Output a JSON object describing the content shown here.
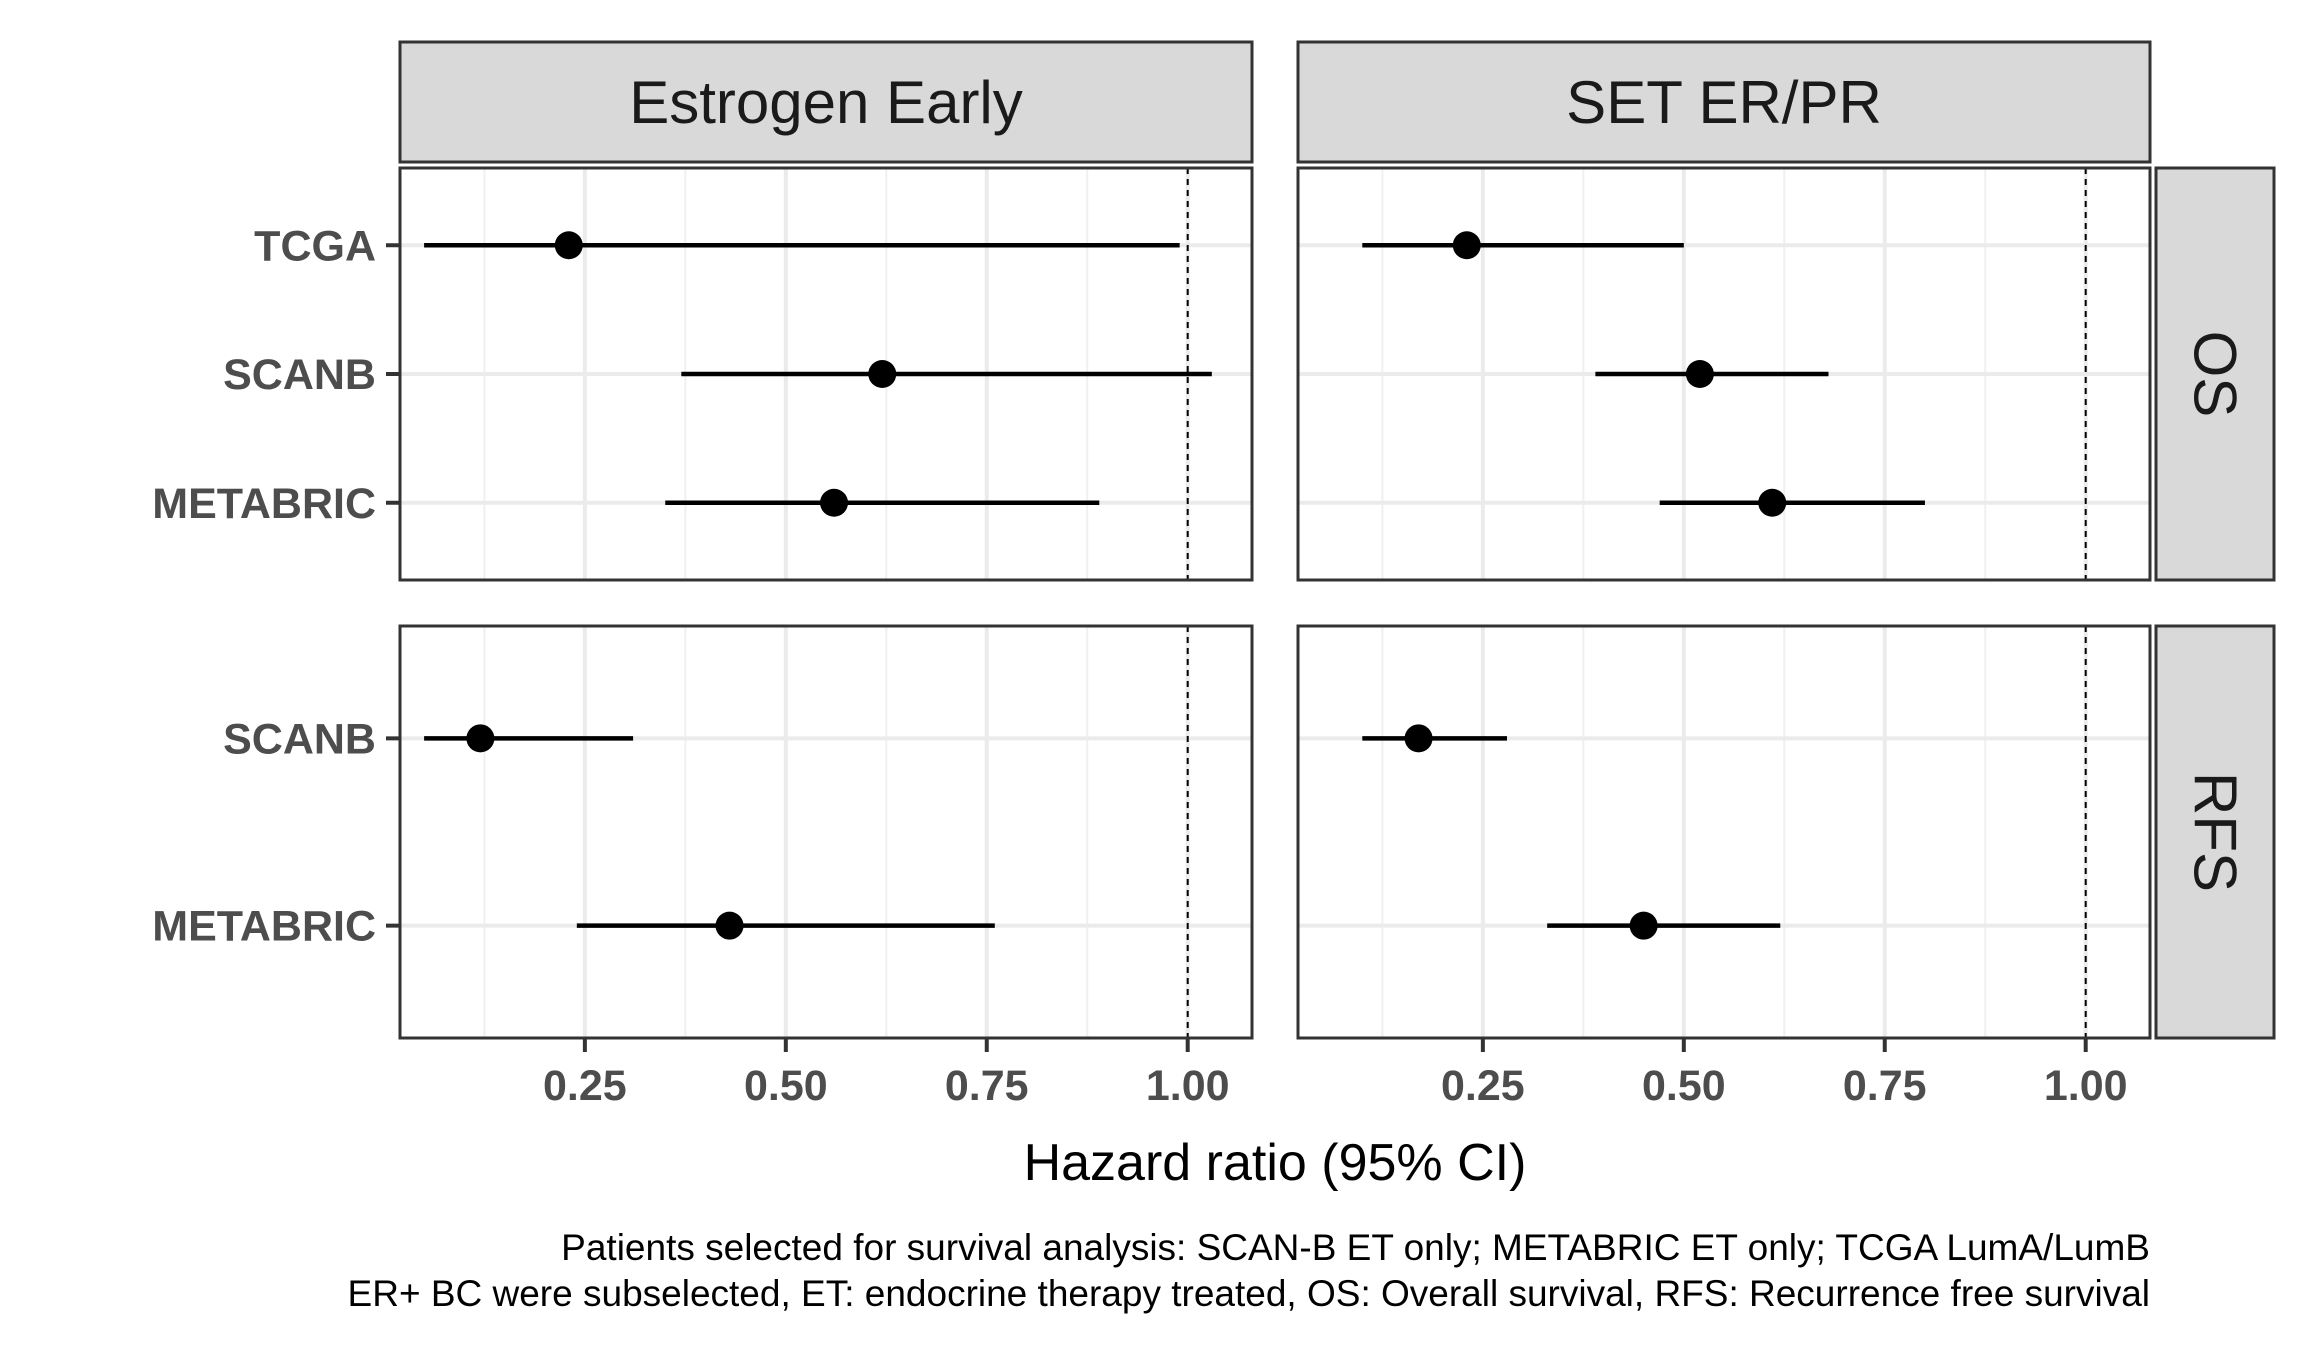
{
  "chart_data": {
    "type": "scatter",
    "subtype": "forest-plot",
    "xlabel": "Hazard ratio (95% CI)",
    "ylabel": "",
    "xlim": [
      0.02,
      1.08
    ],
    "x_ticks": [
      0.25,
      0.5,
      0.75,
      1.0
    ],
    "x_tick_labels": [
      "0.25",
      "0.50",
      "0.75",
      "1.00"
    ],
    "reference_line": 1.0,
    "grid": true,
    "panels_columns": [
      "Estrogen Early",
      "SET ER/PR"
    ],
    "panels_rows": [
      "OS",
      "RFS"
    ],
    "row_categories": {
      "OS": [
        "TCGA",
        "SCANB",
        "METABRIC"
      ],
      "RFS": [
        "SCANB",
        "METABRIC"
      ]
    },
    "series": [
      {
        "column": "Estrogen Early",
        "row": "OS",
        "points": [
          {
            "cohort": "TCGA",
            "hr": 0.23,
            "lower": 0.05,
            "upper": 0.99
          },
          {
            "cohort": "SCANB",
            "hr": 0.62,
            "lower": 0.37,
            "upper": 1.03
          },
          {
            "cohort": "METABRIC",
            "hr": 0.56,
            "lower": 0.35,
            "upper": 0.89
          }
        ]
      },
      {
        "column": "SET ER/PR",
        "row": "OS",
        "points": [
          {
            "cohort": "TCGA",
            "hr": 0.23,
            "lower": 0.1,
            "upper": 0.5
          },
          {
            "cohort": "SCANB",
            "hr": 0.52,
            "lower": 0.39,
            "upper": 0.68
          },
          {
            "cohort": "METABRIC",
            "hr": 0.61,
            "lower": 0.47,
            "upper": 0.8
          }
        ]
      },
      {
        "column": "Estrogen Early",
        "row": "RFS",
        "points": [
          {
            "cohort": "SCANB",
            "hr": 0.12,
            "lower": 0.05,
            "upper": 0.31
          },
          {
            "cohort": "METABRIC",
            "hr": 0.43,
            "lower": 0.24,
            "upper": 0.76
          }
        ]
      },
      {
        "column": "SET ER/PR",
        "row": "RFS",
        "points": [
          {
            "cohort": "SCANB",
            "hr": 0.17,
            "lower": 0.1,
            "upper": 0.28
          },
          {
            "cohort": "METABRIC",
            "hr": 0.45,
            "lower": 0.33,
            "upper": 0.62
          }
        ]
      }
    ],
    "caption_lines": [
      "Patients selected for survival analysis: SCAN-B ET only; METABRIC ET only; TCGA LumA/LumB",
      "ER+ BC were subselected, ET: endocrine therapy treated, OS: Overall survival, RFS: Recurrence free survival"
    ]
  }
}
